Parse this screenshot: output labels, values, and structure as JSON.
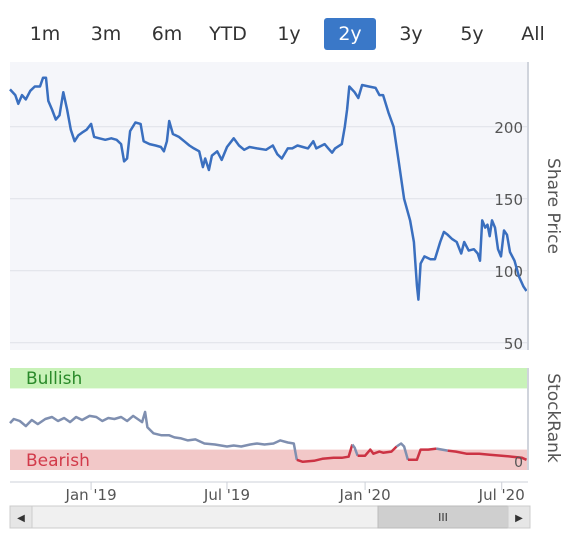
{
  "range_buttons": [
    {
      "label": "1m"
    },
    {
      "label": "3m"
    },
    {
      "label": "6m"
    },
    {
      "label": "YTD"
    },
    {
      "label": "1y"
    },
    {
      "label": "2y",
      "active": true
    },
    {
      "label": "3y"
    },
    {
      "label": "5y"
    },
    {
      "label": "All"
    }
  ],
  "colors": {
    "accent": "#3a78c8",
    "price_line": "#3a6fbf",
    "rank_line": "#7f8fb0",
    "bearish_line": "#cc3344",
    "bullish_band": "#c8f2b8",
    "bearish_band": "#f2c8c8",
    "bullish_text": "#2a8a2a",
    "bearish_text": "#d23a4a",
    "plot_bg": "#f5f6fa"
  },
  "scrollbar": {
    "left_icon": "◀",
    "right_icon": "▶",
    "thumb_grip": "III"
  },
  "chart_data": [
    {
      "type": "line",
      "ylabel": "Share Price",
      "ylim": [
        45,
        245
      ],
      "yticks": [
        50,
        100,
        150,
        200
      ],
      "xlim": [
        "2018-09-15",
        "2020-08-05"
      ],
      "series": [
        {
          "values": [
            [
              "2018-09-15",
              226
            ],
            [
              "2018-09-22",
              222
            ],
            [
              "2018-09-26",
              216
            ],
            [
              "2018-10-01",
              222
            ],
            [
              "2018-10-06",
              219
            ],
            [
              "2018-10-12",
              225
            ],
            [
              "2018-10-18",
              228
            ],
            [
              "2018-10-25",
              228
            ],
            [
              "2018-10-29",
              234
            ],
            [
              "2018-11-02",
              234
            ],
            [
              "2018-11-05",
              218
            ],
            [
              "2018-11-10",
              212
            ],
            [
              "2018-11-15",
              205
            ],
            [
              "2018-11-20",
              208
            ],
            [
              "2018-11-25",
              224
            ],
            [
              "2018-11-30",
              212
            ],
            [
              "2018-12-05",
              198
            ],
            [
              "2018-12-10",
              190
            ],
            [
              "2018-12-15",
              194
            ],
            [
              "2018-12-20",
              196
            ],
            [
              "2018-12-26",
              198
            ],
            [
              "2019-01-01",
              202
            ],
            [
              "2019-01-05",
              193
            ],
            [
              "2019-01-12",
              192
            ],
            [
              "2019-01-20",
              191
            ],
            [
              "2019-01-28",
              192
            ],
            [
              "2019-02-04",
              191
            ],
            [
              "2019-02-10",
              188
            ],
            [
              "2019-02-14",
              176
            ],
            [
              "2019-02-18",
              178
            ],
            [
              "2019-02-22",
              197
            ],
            [
              "2019-03-01",
              203
            ],
            [
              "2019-03-08",
              202
            ],
            [
              "2019-03-12",
              190
            ],
            [
              "2019-03-20",
              188
            ],
            [
              "2019-03-28",
              187
            ],
            [
              "2019-04-04",
              186
            ],
            [
              "2019-04-08",
              183
            ],
            [
              "2019-04-12",
              190
            ],
            [
              "2019-04-15",
              204
            ],
            [
              "2019-04-20",
              195
            ],
            [
              "2019-04-28",
              193
            ],
            [
              "2019-05-05",
              190
            ],
            [
              "2019-05-12",
              187
            ],
            [
              "2019-05-18",
              185
            ],
            [
              "2019-05-25",
              183
            ],
            [
              "2019-05-30",
              172
            ],
            [
              "2019-06-02",
              178
            ],
            [
              "2019-06-07",
              170
            ],
            [
              "2019-06-11",
              180
            ],
            [
              "2019-06-18",
              183
            ],
            [
              "2019-06-24",
              177
            ],
            [
              "2019-07-01",
              186
            ],
            [
              "2019-07-10",
              192
            ],
            [
              "2019-07-17",
              187
            ],
            [
              "2019-07-24",
              184
            ],
            [
              "2019-07-31",
              186
            ],
            [
              "2019-08-10",
              185
            ],
            [
              "2019-08-22",
              184
            ],
            [
              "2019-08-31",
              187
            ],
            [
              "2019-09-06",
              181
            ],
            [
              "2019-09-12",
              178
            ],
            [
              "2019-09-20",
              185
            ],
            [
              "2019-09-26",
              185
            ],
            [
              "2019-10-03",
              187
            ],
            [
              "2019-10-10",
              186
            ],
            [
              "2019-10-17",
              185
            ],
            [
              "2019-10-24",
              190
            ],
            [
              "2019-10-28",
              185
            ],
            [
              "2019-11-08",
              188
            ],
            [
              "2019-11-13",
              185
            ],
            [
              "2019-11-18",
              182
            ],
            [
              "2019-11-22",
              185
            ],
            [
              "2019-12-01",
              188
            ],
            [
              "2019-12-05",
              200
            ],
            [
              "2019-12-08",
              212
            ],
            [
              "2019-12-11",
              228
            ],
            [
              "2019-12-18",
              224
            ],
            [
              "2019-12-23",
              220
            ],
            [
              "2019-12-28",
              229
            ],
            [
              "2020-01-06",
              228
            ],
            [
              "2020-01-15",
              227
            ],
            [
              "2020-01-20",
              222
            ],
            [
              "2020-01-25",
              222
            ],
            [
              "2020-02-01",
              210
            ],
            [
              "2020-02-08",
              200
            ],
            [
              "2020-02-15",
              175
            ],
            [
              "2020-02-22",
              150
            ],
            [
              "2020-03-01",
              135
            ],
            [
              "2020-03-06",
              120
            ],
            [
              "2020-03-10",
              90
            ],
            [
              "2020-03-12",
              80
            ],
            [
              "2020-03-15",
              105
            ],
            [
              "2020-03-20",
              110
            ],
            [
              "2020-03-28",
              108
            ],
            [
              "2020-04-03",
              108
            ],
            [
              "2020-04-10",
              120
            ],
            [
              "2020-04-15",
              127
            ],
            [
              "2020-04-20",
              125
            ],
            [
              "2020-04-26",
              122
            ],
            [
              "2020-05-02",
              120
            ],
            [
              "2020-05-08",
              112
            ],
            [
              "2020-05-12",
              120
            ],
            [
              "2020-05-18",
              114
            ],
            [
              "2020-05-25",
              115
            ],
            [
              "2020-05-30",
              112
            ],
            [
              "2020-06-02",
              107
            ],
            [
              "2020-06-05",
              135
            ],
            [
              "2020-06-09",
              130
            ],
            [
              "2020-06-12",
              132
            ],
            [
              "2020-06-15",
              124
            ],
            [
              "2020-06-18",
              135
            ],
            [
              "2020-06-22",
              130
            ],
            [
              "2020-06-26",
              115
            ],
            [
              "2020-06-30",
              110
            ],
            [
              "2020-07-04",
              128
            ],
            [
              "2020-07-08",
              125
            ],
            [
              "2020-07-12",
              113
            ],
            [
              "2020-07-18",
              107
            ],
            [
              "2020-07-24",
              96
            ],
            [
              "2020-07-30",
              89
            ],
            [
              "2020-08-03",
              86
            ]
          ]
        }
      ]
    },
    {
      "type": "line",
      "ylabel": "StockRank",
      "ylim": [
        0,
        100
      ],
      "yticks": [
        0
      ],
      "bands": [
        {
          "label": "Bullish",
          "from": 80,
          "to": 100
        },
        {
          "label": "Bearish",
          "from": 0,
          "to": 20
        }
      ],
      "x_tick_labels": [
        {
          "date": "2019-01-01",
          "label": "Jan '19"
        },
        {
          "date": "2019-07-01",
          "label": "Jul '19"
        },
        {
          "date": "2020-01-01",
          "label": "Jan '20"
        },
        {
          "date": "2020-07-01",
          "label": "Jul '20"
        }
      ],
      "series": [
        {
          "values": [
            [
              "2018-09-15",
              46
            ],
            [
              "2018-09-20",
              50
            ],
            [
              "2018-09-28",
              48
            ],
            [
              "2018-10-06",
              43
            ],
            [
              "2018-10-14",
              49
            ],
            [
              "2018-10-22",
              45
            ],
            [
              "2018-11-01",
              50
            ],
            [
              "2018-11-10",
              52
            ],
            [
              "2018-11-18",
              48
            ],
            [
              "2018-11-26",
              51
            ],
            [
              "2018-12-04",
              47
            ],
            [
              "2018-12-12",
              52
            ],
            [
              "2018-12-20",
              49
            ],
            [
              "2018-12-30",
              53
            ],
            [
              "2019-01-08",
              52
            ],
            [
              "2019-01-16",
              48
            ],
            [
              "2019-01-24",
              51
            ],
            [
              "2019-02-01",
              50
            ],
            [
              "2019-02-10",
              52
            ],
            [
              "2019-02-18",
              48
            ],
            [
              "2019-02-26",
              53
            ],
            [
              "2019-03-06",
              49
            ],
            [
              "2019-03-10",
              47
            ],
            [
              "2019-03-14",
              57
            ],
            [
              "2019-03-17",
              42
            ],
            [
              "2019-03-25",
              36
            ],
            [
              "2019-04-05",
              34
            ],
            [
              "2019-04-15",
              34
            ],
            [
              "2019-04-22",
              32
            ],
            [
              "2019-05-01",
              31
            ],
            [
              "2019-05-10",
              29
            ],
            [
              "2019-05-20",
              30
            ],
            [
              "2019-06-01",
              26
            ],
            [
              "2019-06-15",
              25
            ],
            [
              "2019-07-01",
              23
            ],
            [
              "2019-07-10",
              24
            ],
            [
              "2019-07-20",
              23
            ],
            [
              "2019-08-01",
              25
            ],
            [
              "2019-08-10",
              26
            ],
            [
              "2019-08-20",
              25
            ],
            [
              "2019-09-01",
              26
            ],
            [
              "2019-09-10",
              29
            ],
            [
              "2019-09-20",
              27
            ],
            [
              "2019-09-28",
              26
            ],
            [
              "2019-10-02",
              10
            ],
            [
              "2019-10-10",
              8
            ],
            [
              "2019-10-25",
              9
            ],
            [
              "2019-11-05",
              11
            ],
            [
              "2019-11-20",
              12
            ],
            [
              "2019-12-01",
              12
            ],
            [
              "2019-12-10",
              13
            ],
            [
              "2019-12-15",
              25
            ],
            [
              "2019-12-18",
              22
            ],
            [
              "2019-12-22",
              14
            ],
            [
              "2020-01-01",
              14
            ],
            [
              "2020-01-08",
              20
            ],
            [
              "2020-01-12",
              16
            ],
            [
              "2020-01-20",
              18
            ],
            [
              "2020-01-25",
              17
            ],
            [
              "2020-02-05",
              18
            ],
            [
              "2020-02-12",
              23
            ],
            [
              "2020-02-18",
              26
            ],
            [
              "2020-02-22",
              23
            ],
            [
              "2020-02-27",
              10
            ],
            [
              "2020-03-10",
              10
            ],
            [
              "2020-03-15",
              20
            ],
            [
              "2020-03-25",
              20
            ],
            [
              "2020-04-05",
              21
            ],
            [
              "2020-04-20",
              19
            ],
            [
              "2020-05-01",
              18
            ],
            [
              "2020-05-15",
              16
            ],
            [
              "2020-06-01",
              16
            ],
            [
              "2020-06-15",
              15
            ],
            [
              "2020-07-01",
              14
            ],
            [
              "2020-07-15",
              13
            ],
            [
              "2020-07-28",
              12
            ],
            [
              "2020-08-03",
              10
            ]
          ]
        }
      ]
    }
  ]
}
